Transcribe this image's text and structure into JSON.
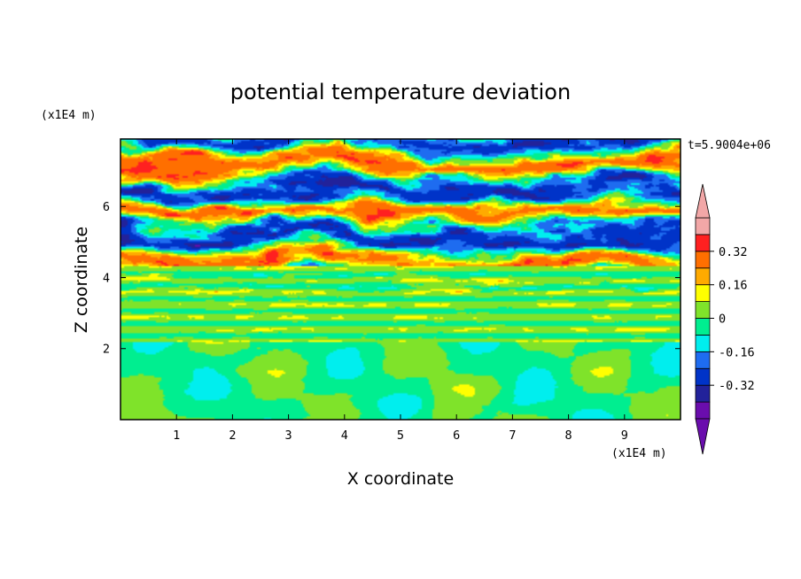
{
  "chart_data": {
    "type": "heatmap",
    "title": "potential temperature deviation",
    "xlabel": "X coordinate",
    "ylabel": "Z coordinate",
    "x_unit": "(x1E4 m)",
    "y_unit": "(x1E4 m)",
    "time_label": "t=5.9004e+06",
    "xlim": [
      0,
      10
    ],
    "ylim": [
      0,
      7.9
    ],
    "x_ticks": [
      1,
      2,
      3,
      4,
      5,
      6,
      7,
      8,
      9
    ],
    "y_ticks": [
      2,
      4,
      6
    ],
    "colorbar": {
      "levels": [
        -0.48,
        -0.4,
        -0.32,
        -0.24,
        -0.16,
        -0.08,
        0,
        0.08,
        0.16,
        0.24,
        0.32,
        0.4,
        0.48
      ],
      "labels": [
        "0.32",
        "0.16",
        "0",
        "-0.16",
        "-0.32"
      ],
      "label_values": [
        0.32,
        0.16,
        0,
        -0.16,
        -0.32
      ],
      "colors": [
        "#6a0dad",
        "#22229a",
        "#0033c8",
        "#1e6cf0",
        "#00eeee",
        "#00ee90",
        "#7fe32a",
        "#ffff00",
        "#ffaa00",
        "#ff6f00",
        "#ff2020",
        "#f2a7a7"
      ],
      "extend": "both"
    }
  }
}
